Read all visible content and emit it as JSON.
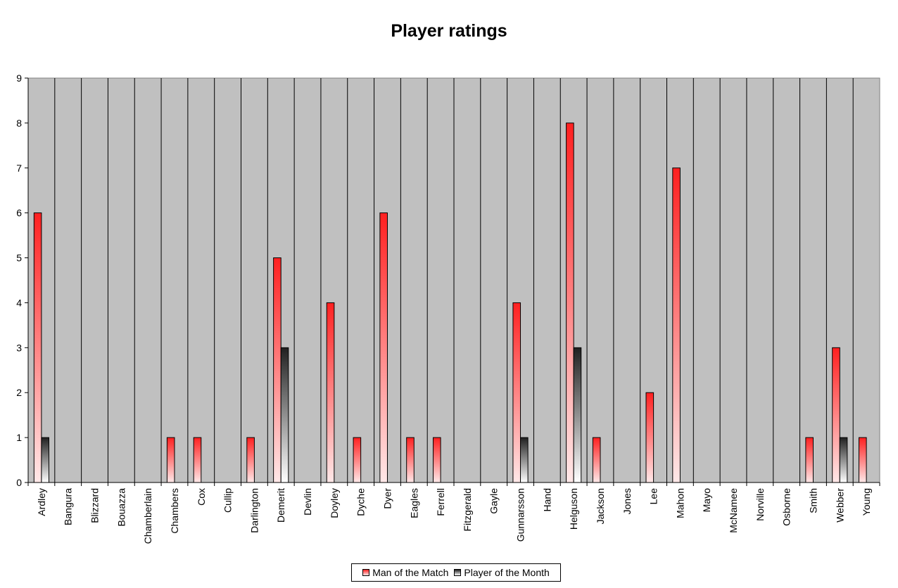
{
  "chart_data": {
    "type": "bar",
    "title": "Player ratings",
    "xlabel": "",
    "ylabel": "",
    "ylim": [
      0,
      9
    ],
    "yticks": [
      0,
      1,
      2,
      3,
      4,
      5,
      6,
      7,
      8,
      9
    ],
    "grid": true,
    "legend_position": "bottom",
    "plot_background": "#c0c0c0",
    "categories": [
      "Ardley",
      "Bangura",
      "Blizzard",
      "Bouazza",
      "Chamberlain",
      "Chambers",
      "Cox",
      "Cullip",
      "Darlington",
      "Demerit",
      "Devlin",
      "Doyley",
      "Dyche",
      "Dyer",
      "Eagles",
      "Ferrell",
      "Fitzgerald",
      "Gayle",
      "Gunnarsson",
      "Hand",
      "Helguson",
      "Jackson",
      "Jones",
      "Lee",
      "Mahon",
      "Mayo",
      "McNamee",
      "Norville",
      "Osborne",
      "Smith",
      "Webber",
      "Young"
    ],
    "series": [
      {
        "name": "Man of the Match",
        "color_top": "#ff2020",
        "color_bottom": "#ffe8e8",
        "values": [
          6,
          0,
          0,
          0,
          0,
          1,
          1,
          0,
          1,
          5,
          0,
          4,
          1,
          6,
          1,
          1,
          0,
          0,
          4,
          0,
          8,
          1,
          0,
          2,
          7,
          0,
          0,
          0,
          0,
          1,
          3,
          1
        ]
      },
      {
        "name": "Player of the Month",
        "color_top": "#202020",
        "color_bottom": "#ffffff",
        "values": [
          1,
          0,
          0,
          0,
          0,
          0,
          0,
          0,
          0,
          3,
          0,
          0,
          0,
          0,
          0,
          0,
          0,
          0,
          1,
          0,
          3,
          0,
          0,
          0,
          0,
          0,
          0,
          0,
          0,
          0,
          1,
          0
        ]
      }
    ]
  }
}
